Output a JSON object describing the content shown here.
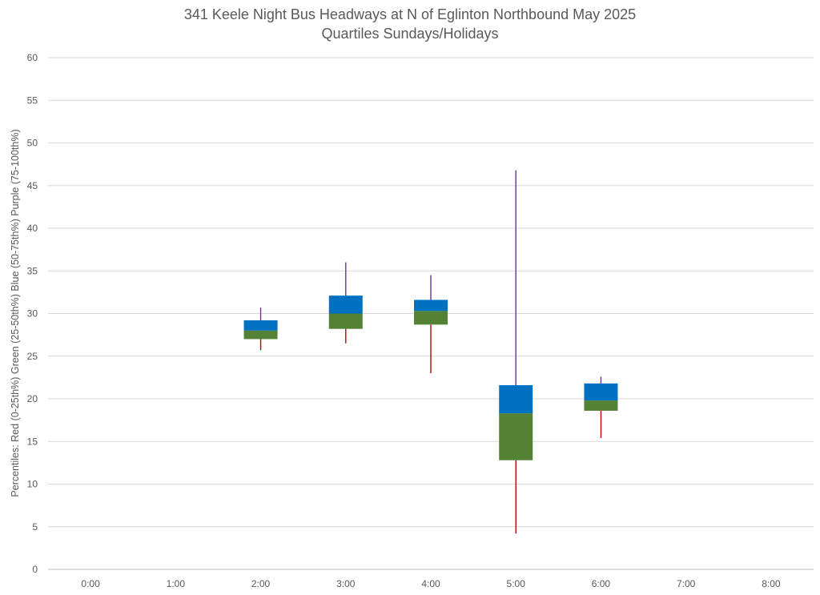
{
  "title": "341 Keele Night Bus Headways at N of Eglinton Northbound May 2025",
  "subtitle": "Quartiles Sundays/Holidays",
  "colors": {
    "whisker_low": "#C00000",
    "box_low": "#548235",
    "box_high": "#0070C0",
    "whisker_high": "#7030A0",
    "grid": "#d9d9d9",
    "text": "#595959"
  },
  "chart_data": {
    "type": "box",
    "title": "341 Keele Night Bus Headways at N of Eglinton Northbound May 2025",
    "subtitle": "Quartiles Sundays/Holidays",
    "ylabel": "Percentiles:  Red (0-25th%)  Green (25-50th%)  Blue (50-75th%)  Purple (75-100th%)",
    "xlabel": "",
    "ylim": [
      0,
      60
    ],
    "yticks": [
      0,
      5,
      10,
      15,
      20,
      25,
      30,
      35,
      40,
      45,
      50,
      55,
      60
    ],
    "grid": true,
    "categories": [
      "0:00",
      "1:00",
      "2:00",
      "3:00",
      "4:00",
      "5:00",
      "6:00",
      "7:00",
      "8:00"
    ],
    "series": [
      {
        "category": "0:00",
        "min": null,
        "q1": null,
        "median": null,
        "q3": null,
        "max": null
      },
      {
        "category": "1:00",
        "min": null,
        "q1": null,
        "median": null,
        "q3": null,
        "max": null
      },
      {
        "category": "2:00",
        "min": 25.7,
        "q1": 27.0,
        "median": 28.0,
        "q3": 29.2,
        "max": 30.7
      },
      {
        "category": "3:00",
        "min": 26.5,
        "q1": 28.2,
        "median": 30.0,
        "q3": 32.1,
        "max": 36.0
      },
      {
        "category": "4:00",
        "min": 23.0,
        "q1": 28.7,
        "median": 30.3,
        "q3": 31.6,
        "max": 34.5
      },
      {
        "category": "5:00",
        "min": 4.2,
        "q1": 12.8,
        "median": 18.3,
        "q3": 21.6,
        "max": 46.8
      },
      {
        "category": "6:00",
        "min": 15.4,
        "q1": 18.6,
        "median": 19.8,
        "q3": 21.8,
        "max": 22.6
      },
      {
        "category": "7:00",
        "min": null,
        "q1": null,
        "median": null,
        "q3": null,
        "max": null
      },
      {
        "category": "8:00",
        "min": null,
        "q1": null,
        "median": null,
        "q3": null,
        "max": null
      }
    ]
  }
}
